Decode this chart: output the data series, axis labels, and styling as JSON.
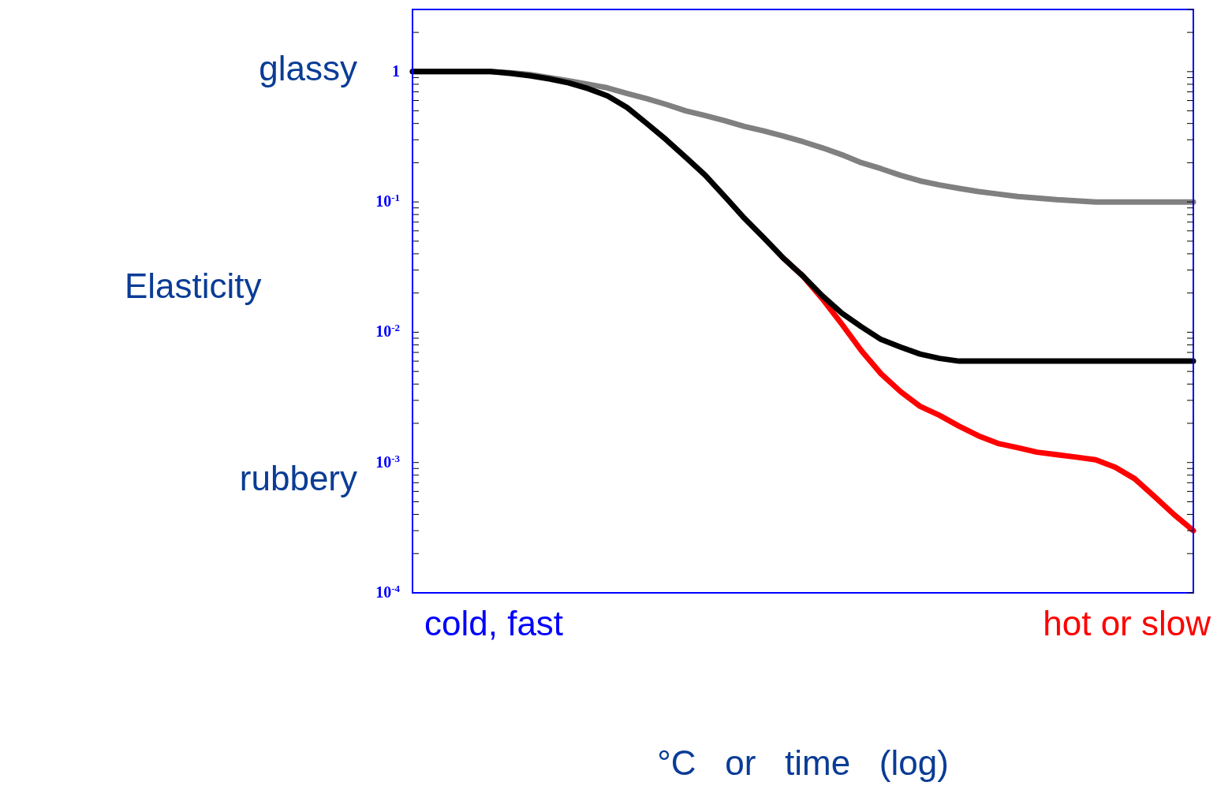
{
  "chart_data": {
    "type": "line",
    "ylabel": "Elasticity",
    "xlabel": "°C   or   time   (log)",
    "annotations": [
      "glassy",
      "rubbery",
      "cold, fast",
      "hot or slow"
    ],
    "log": "y",
    "marker": "none",
    "line_style": "solid",
    "tick_labels": "y",
    "categories": [
      null,
      null,
      null,
      null,
      null,
      null,
      null,
      null,
      null,
      null,
      null,
      null,
      null,
      null,
      null,
      null,
      null,
      null,
      null,
      null,
      null,
      null,
      null,
      null,
      null,
      null,
      null,
      null,
      null,
      null,
      null,
      null,
      null,
      null,
      null,
      null,
      null,
      null,
      null,
      null,
      null
    ],
    "ylim": [
      0.0001,
      3
    ],
    "yticks": [
      {
        "value": 0.0001,
        "label": "10$^{-4}$"
      },
      {
        "value": 0.0002,
        "label": null
      },
      {
        "value": 0.0003,
        "label": null
      },
      {
        "value": 0.0004,
        "label": null
      },
      {
        "value": 0.0005,
        "label": null
      },
      {
        "value": 0.0006,
        "label": null
      },
      {
        "value": 0.0007,
        "label": null
      },
      {
        "value": 0.0008,
        "label": null
      },
      {
        "value": 0.0009,
        "label": null
      },
      {
        "value": 0.001,
        "label": "10$^{-3}$"
      },
      {
        "value": 0.002,
        "label": null
      },
      {
        "value": 0.003,
        "label": null
      },
      {
        "value": 0.004,
        "label": null
      },
      {
        "value": 0.005,
        "label": null
      },
      {
        "value": 0.006,
        "label": null
      },
      {
        "value": 0.007,
        "label": null
      },
      {
        "value": 0.008,
        "label": null
      },
      {
        "value": 0.009,
        "label": null
      },
      {
        "value": 0.01,
        "label": "10$^{-2}$"
      },
      {
        "value": 0.02,
        "label": null
      },
      {
        "value": 0.03,
        "label": null
      },
      {
        "value": 0.04,
        "label": null
      },
      {
        "value": 0.05,
        "label": null
      },
      {
        "value": 0.06,
        "label": null
      },
      {
        "value": 0.07,
        "label": null
      },
      {
        "value": 0.08,
        "label": null
      },
      {
        "value": 0.09,
        "label": null
      },
      {
        "value": 0.1,
        "label": "10$^{-1}$"
      },
      {
        "value": 0.2,
        "label": null
      },
      {
        "value": 0.3,
        "label": null
      },
      {
        "value": 0.4,
        "label": null
      },
      {
        "value": 0.5,
        "label": null
      },
      {
        "value": 0.6,
        "label": null
      },
      {
        "value": 0.7,
        "label": null
      },
      {
        "value": 0.8,
        "label": null
      },
      {
        "value": 0.9,
        "label": null
      },
      {
        "value": 1,
        "label": "1"
      },
      {
        "value": 2,
        "label": null
      },
      {
        "value": 3,
        "label": null
      }
    ],
    "series": [
      {
        "color": "#808080",
        "values": [
          1,
          1,
          1,
          1,
          1,
          0.98,
          0.95,
          0.9,
          0.85,
          0.8,
          0.75,
          0.68,
          0.62,
          0.56,
          0.5,
          0.46,
          0.42,
          0.38,
          0.35,
          0.32,
          0.29,
          0.26,
          0.23,
          0.2,
          0.18,
          0.16,
          0.145,
          0.135,
          0.127,
          0.12,
          0.115,
          0.11,
          0.107,
          0.104,
          0.102,
          0.1,
          0.1,
          0.1,
          0.1,
          0.1,
          0.1
        ]
      },
      {
        "color": "#ff0000",
        "values": [
          null,
          null,
          null,
          null,
          null,
          null,
          null,
          null,
          null,
          null,
          null,
          null,
          null,
          null,
          null,
          null,
          null,
          null,
          null,
          0.037,
          0.027,
          0.018,
          0.0115,
          0.0072,
          0.0048,
          0.0035,
          0.0027,
          0.0023,
          0.0019,
          0.0016,
          0.0014,
          0.0013,
          0.0012,
          0.00115,
          0.0011,
          0.00105,
          0.00092,
          0.00075,
          0.00055,
          0.0004,
          0.0003
        ]
      },
      {
        "color": "#000000",
        "values": [
          1,
          1,
          1,
          1,
          1,
          0.97,
          0.93,
          0.88,
          0.82,
          0.74,
          0.65,
          0.53,
          0.4,
          0.3,
          0.22,
          0.16,
          0.11,
          0.075,
          0.053,
          0.037,
          0.027,
          0.019,
          0.014,
          0.011,
          0.0088,
          0.0077,
          0.0068,
          0.0063,
          0.006,
          0.006,
          0.006,
          0.006,
          0.006,
          0.006,
          0.006,
          0.006,
          0.006,
          0.006,
          0.006,
          0.006,
          0.006
        ]
      }
    ]
  }
}
